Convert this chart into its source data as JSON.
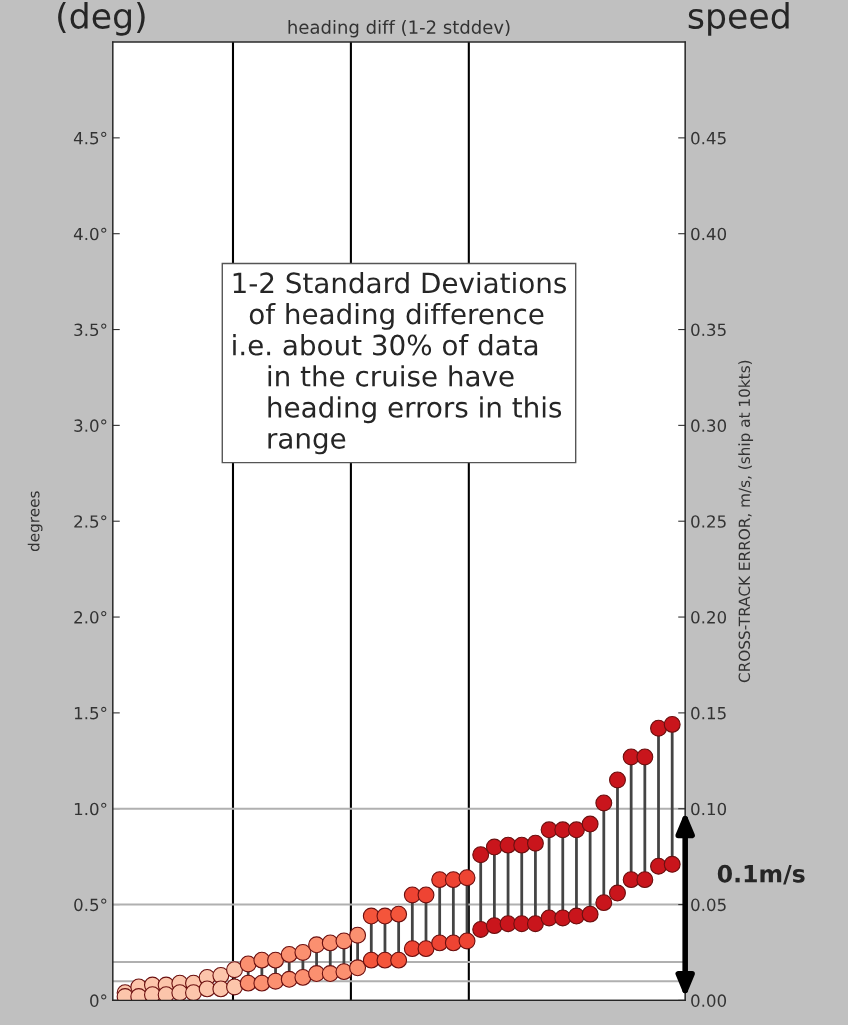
{
  "chart_data": {
    "type": "scatter",
    "title": "heading diff (1-2 stddev)",
    "ylabel": "degrees",
    "y2label": "CROSS-TRACK ERROR, m/s, (ship at 10kts)",
    "annotations": [
      "(deg)",
      "speed",
      "0.1m/s",
      "1-2 Standard Deviations\n  of heading difference\ni.e. about 30% of data\n    in the cruise have\n    heading errors in this\n    range"
    ],
    "categories": [
      null,
      null,
      null,
      null,
      null,
      null,
      null,
      null,
      null,
      null,
      null,
      null,
      null,
      null,
      null,
      null,
      null,
      null,
      null,
      null,
      null,
      null,
      null,
      null,
      null,
      null,
      null,
      null,
      null,
      null,
      null,
      null,
      null,
      null,
      null,
      null,
      null,
      null,
      null,
      null,
      null
    ],
    "series": [
      {
        "values": [
          0.04,
          0.07,
          0.08,
          0.08,
          0.09,
          0.09,
          0.12,
          0.13,
          0.16,
          0.19,
          0.21,
          0.21,
          0.24,
          0.25,
          0.29,
          0.3,
          0.31,
          0.34,
          0.44,
          0.44,
          0.45,
          0.55,
          0.55,
          0.63,
          0.63,
          0.64,
          0.76,
          0.8,
          0.81,
          0.81,
          0.82,
          0.89,
          0.89,
          0.89,
          0.92,
          1.03,
          1.15,
          1.27,
          1.27,
          1.42,
          1.44
        ],
        "colors": [
          "#fcc5ab",
          "#fcc5ab",
          "#fcc5ab",
          "#fcc5ab",
          "#fcc5ab",
          "#fcc5ab",
          "#fcc5ab",
          "#fcc5ab",
          "#fcc5ab",
          "#fb9070",
          "#fb9070",
          "#fb9070",
          "#fb9070",
          "#fb9070",
          "#fb9070",
          "#fb9070",
          "#fb9070",
          "#fb9070",
          "#f4553b",
          "#f4553b",
          "#f4553b",
          "#ee4433",
          "#ee4433",
          "#ee4433",
          "#ee4433",
          "#ee4433",
          "#c9151c",
          "#c9151c",
          "#c9151c",
          "#c9151c",
          "#c9151c",
          "#c9151c",
          "#c9151c",
          "#c9151c",
          "#c9151c",
          "#c9151c",
          "#c9151c",
          "#c9151c",
          "#c9151c",
          "#c9151c",
          "#c9151c"
        ]
      },
      {
        "values": [
          0.02,
          0.02,
          0.03,
          0.03,
          0.04,
          0.04,
          0.06,
          0.06,
          0.07,
          0.09,
          0.09,
          0.1,
          0.11,
          0.12,
          0.14,
          0.14,
          0.15,
          0.17,
          0.21,
          0.21,
          0.21,
          0.27,
          0.27,
          0.3,
          0.3,
          0.31,
          0.37,
          0.39,
          0.4,
          0.4,
          0.4,
          0.43,
          0.43,
          0.44,
          0.45,
          0.51,
          0.56,
          0.63,
          0.63,
          0.7,
          0.71
        ],
        "colors": [
          "#fcc5ab",
          "#fcc5ab",
          "#fcc5ab",
          "#fcc5ab",
          "#fcc5ab",
          "#fcc5ab",
          "#fcc5ab",
          "#fcc5ab",
          "#fcc5ab",
          "#fb9070",
          "#fb9070",
          "#fb9070",
          "#fb9070",
          "#fb9070",
          "#fb9070",
          "#fb9070",
          "#fb9070",
          "#fb9070",
          "#f4553b",
          "#f4553b",
          "#f4553b",
          "#ee4433",
          "#ee4433",
          "#ee4433",
          "#ee4433",
          "#ee4433",
          "#c9151c",
          "#c9151c",
          "#c9151c",
          "#c9151c",
          "#c9151c",
          "#c9151c",
          "#c9151c",
          "#c9151c",
          "#c9151c",
          "#c9151c",
          "#c9151c",
          "#c9151c",
          "#c9151c",
          "#c9151c",
          "#c9151c"
        ]
      }
    ],
    "marker": "circle",
    "ylim": [
      0,
      5
    ],
    "yticks": [
      {
        "value": 0,
        "label": "0°"
      },
      {
        "value": 0.5,
        "label": "0.5°"
      },
      {
        "value": 1,
        "label": "1.0°"
      },
      {
        "value": 1.5,
        "label": "1.5°"
      },
      {
        "value": 2,
        "label": "2.0°"
      },
      {
        "value": 2.5,
        "label": "2.5°"
      },
      {
        "value": 3,
        "label": "3.0°"
      },
      {
        "value": 3.5,
        "label": "3.5°"
      },
      {
        "value": 4,
        "label": "4.0°"
      },
      {
        "value": 4.5,
        "label": "4.5°"
      }
    ],
    "y2lim": [
      0,
      0.5
    ],
    "y2ticks": [
      {
        "value": 0,
        "label": "0.00"
      },
      {
        "value": 0.05,
        "label": "0.05"
      },
      {
        "value": 0.1,
        "label": "0.10"
      },
      {
        "value": 0.15,
        "label": "0.15"
      },
      {
        "value": 0.2,
        "label": "0.20"
      },
      {
        "value": 0.25,
        "label": "0.25"
      },
      {
        "value": 0.3,
        "label": "0.30"
      },
      {
        "value": 0.35,
        "label": "0.35"
      },
      {
        "value": 0.4,
        "label": "0.40"
      },
      {
        "value": 0.45,
        "label": "0.45"
      }
    ],
    "tick_labels": "y",
    "ref_lines": [
      {
        "axis": "y",
        "value": 0.1,
        "color": "#b0b0b0"
      },
      {
        "axis": "y",
        "value": 0.2,
        "color": "#b0b0b0"
      },
      {
        "axis": "y",
        "value": 0.5,
        "color": "#b0b0b0"
      },
      {
        "axis": "y",
        "value": 1.0,
        "color": "#b0b0b0"
      }
    ]
  }
}
